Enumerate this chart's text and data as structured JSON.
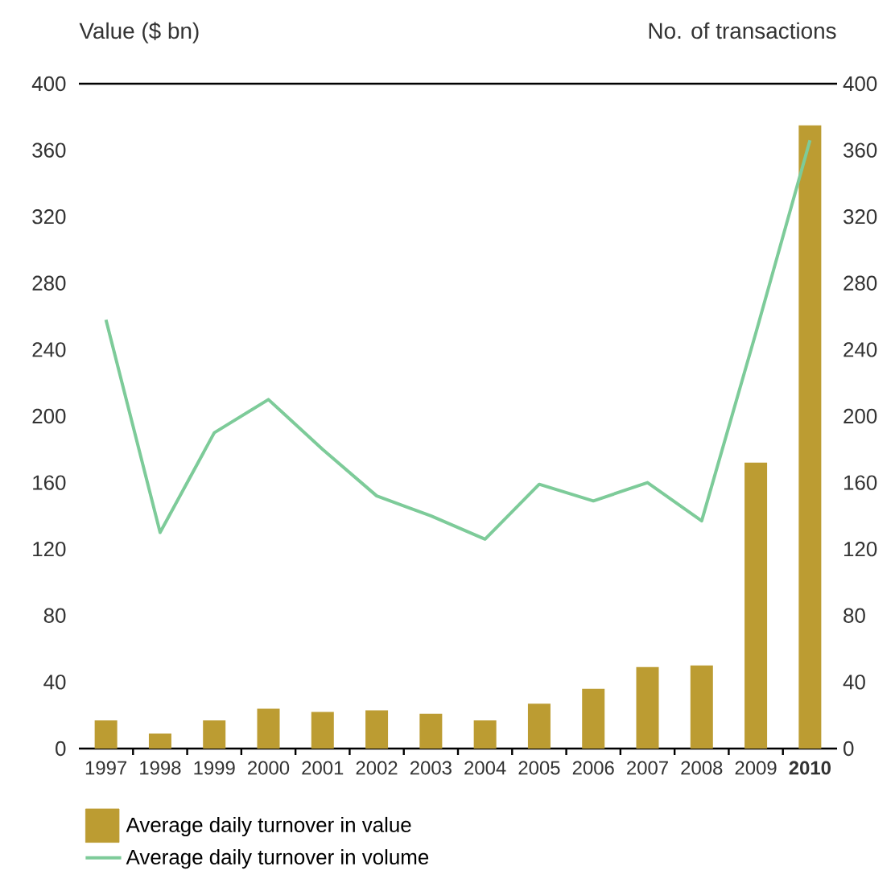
{
  "chart_data": {
    "type": "bar",
    "ylabel": "Value ($ bn)",
    "y2label": "No. of transactions",
    "categories": [
      "1997",
      "1998",
      "1999",
      "2000",
      "2001",
      "2002",
      "2003",
      "2004",
      "2005",
      "2006",
      "2007",
      "2008",
      "2009",
      "**2010**"
    ],
    "series": [
      {
        "name": "Average daily turnover in value",
        "axis": "y",
        "color": "#bc9c32",
        "values": [
          17,
          9,
          17,
          24,
          22,
          23,
          21,
          17,
          27,
          36,
          49,
          50,
          172,
          375
        ]
      },
      {
        "name": "Average daily turnover in volume",
        "type": "line",
        "axis": "y2",
        "color": "#7dcb99",
        "values": [
          258,
          130,
          190,
          210,
          180,
          152,
          140,
          126,
          159,
          149,
          160,
          137,
          250,
          366
        ]
      }
    ],
    "ylim": [
      0,
      400
    ],
    "yticks": [
      0,
      40,
      80,
      120,
      160,
      200,
      240,
      280,
      320,
      360,
      400
    ],
    "y2lim": [
      0,
      400
    ],
    "y2ticks": [
      0,
      40,
      80,
      120,
      160,
      200,
      240,
      280,
      320,
      360,
      400
    ],
    "legend": "bottom"
  }
}
